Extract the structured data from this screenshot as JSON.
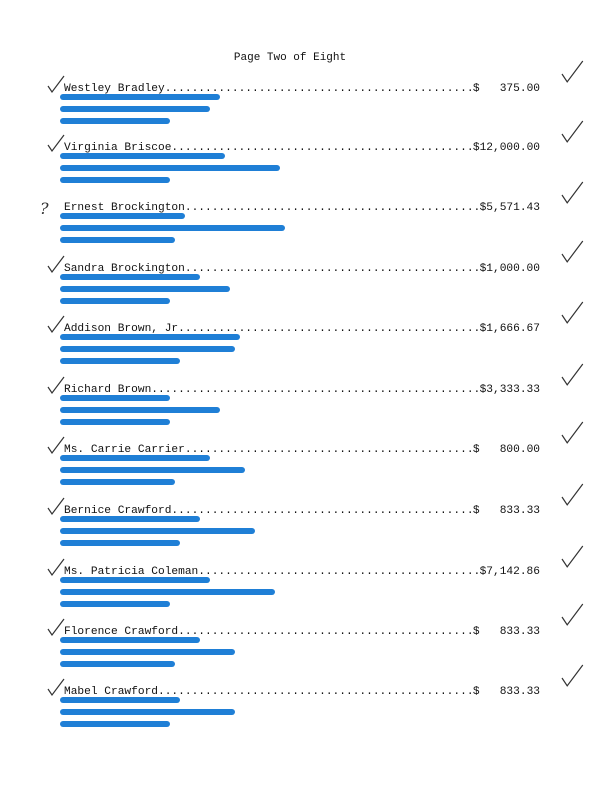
{
  "header": {
    "title": "Page Two of Eight"
  },
  "entries": [
    {
      "name": "Westley Bradley",
      "amount": "$   375.00"
    },
    {
      "name": "Virginia Briscoe",
      "amount": "$12,000.00"
    },
    {
      "name": "Ernest Brockington",
      "amount": "$5,571.43",
      "margin_note": "?"
    },
    {
      "name": "Sandra Brockington",
      "amount": "$1,000.00"
    },
    {
      "name": "Addison Brown, Jr.",
      "amount": "$1,666.67"
    },
    {
      "name": "Richard Brown",
      "amount": "$3,333.33"
    },
    {
      "name": "Ms. Carrie Carrier",
      "amount": "$   800.00"
    },
    {
      "name": "Bernice Crawford",
      "amount": "$   833.33"
    },
    {
      "name": "Ms. Patricia Coleman",
      "amount": "$7,142.86"
    },
    {
      "name": "Florence Crawford",
      "amount": "$   833.33"
    },
    {
      "name": "Mabel Crawford",
      "amount": "$   833.33"
    }
  ]
}
